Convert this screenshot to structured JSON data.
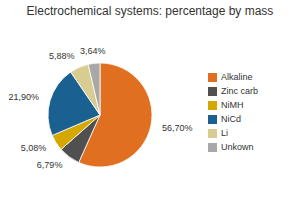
{
  "chart_data": {
    "type": "pie",
    "title": "Electrochemical systems: percentage by mass",
    "categories": [
      "Alkaline",
      "Zinc carb",
      "NiMH",
      "NiCd",
      "Li",
      "Unkown"
    ],
    "values": [
      56.7,
      6.79,
      5.08,
      21.9,
      5.88,
      3.64
    ],
    "value_labels": [
      "56,70%",
      "6,79%",
      "5,08%",
      "21,90%",
      "5,88%",
      "3,64%"
    ],
    "colors": [
      "#E07020",
      "#505050",
      "#D4A800",
      "#1A6090",
      "#D8CC90",
      "#A8A8A8"
    ],
    "data_labels": true,
    "legend": "right"
  }
}
